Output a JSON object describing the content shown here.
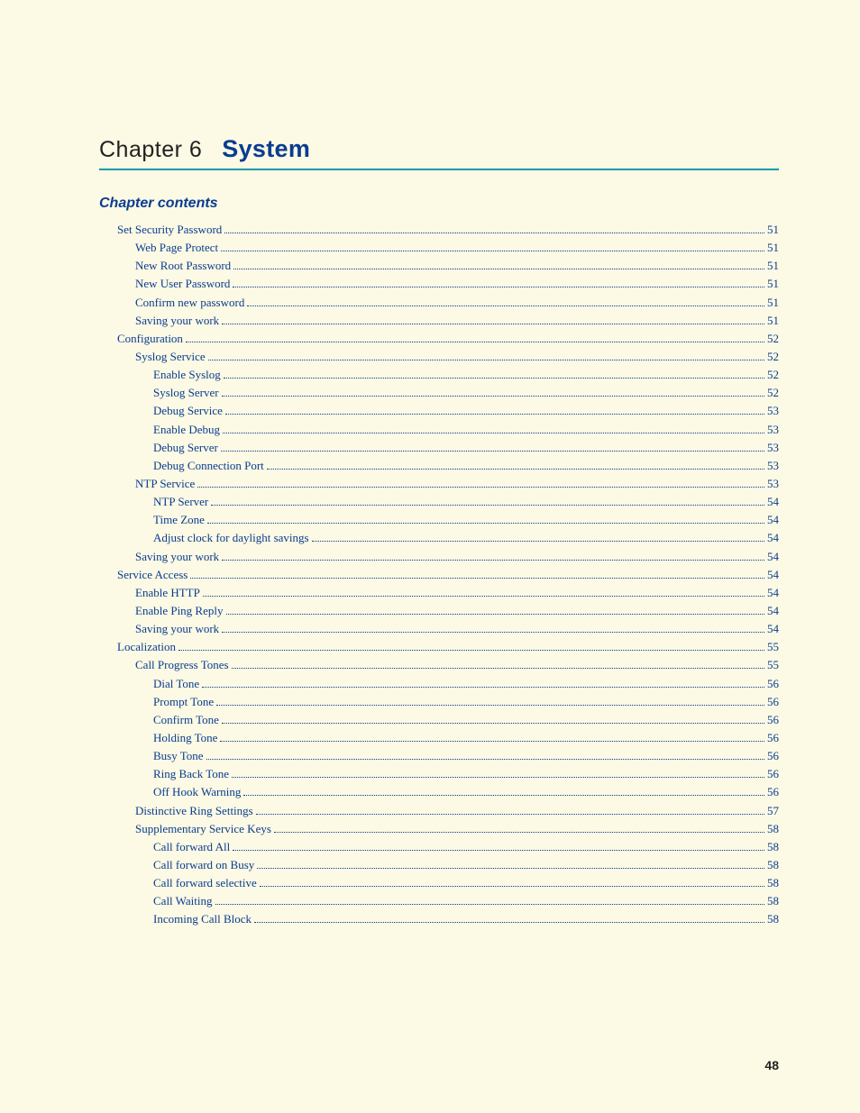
{
  "chapter": {
    "number_label": "Chapter 6",
    "title": "System"
  },
  "contents_heading": "Chapter contents",
  "page_number": "48",
  "toc": [
    {
      "label": "Set Security Password",
      "page": "51",
      "indent": 0
    },
    {
      "label": "Web Page Protect",
      "page": "51",
      "indent": 1
    },
    {
      "label": "New Root Password",
      "page": "51",
      "indent": 1
    },
    {
      "label": "New User Password",
      "page": "51",
      "indent": 1
    },
    {
      "label": "Confirm new password",
      "page": "51",
      "indent": 1
    },
    {
      "label": "Saving your work",
      "page": "51",
      "indent": 1
    },
    {
      "label": "Configuration",
      "page": "52",
      "indent": 0
    },
    {
      "label": "Syslog Service",
      "page": "52",
      "indent": 1
    },
    {
      "label": "Enable Syslog",
      "page": "52",
      "indent": 2
    },
    {
      "label": "Syslog Server",
      "page": "52",
      "indent": 2
    },
    {
      "label": "Debug Service",
      "page": "53",
      "indent": 2
    },
    {
      "label": "Enable Debug",
      "page": "53",
      "indent": 2
    },
    {
      "label": "Debug Server",
      "page": "53",
      "indent": 2
    },
    {
      "label": "Debug Connection Port",
      "page": "53",
      "indent": 2
    },
    {
      "label": "NTP Service",
      "page": "53",
      "indent": 1
    },
    {
      "label": "NTP Server",
      "page": "54",
      "indent": 2
    },
    {
      "label": "Time Zone",
      "page": "54",
      "indent": 2
    },
    {
      "label": "Adjust clock for daylight savings",
      "page": "54",
      "indent": 2
    },
    {
      "label": "Saving your work",
      "page": "54",
      "indent": 1
    },
    {
      "label": "Service Access",
      "page": "54",
      "indent": 0
    },
    {
      "label": "Enable HTTP",
      "page": "54",
      "indent": 1
    },
    {
      "label": "Enable Ping Reply",
      "page": "54",
      "indent": 1
    },
    {
      "label": "Saving your work",
      "page": "54",
      "indent": 1
    },
    {
      "label": "Localization",
      "page": "55",
      "indent": 0
    },
    {
      "label": "Call Progress Tones",
      "page": "55",
      "indent": 1
    },
    {
      "label": "Dial Tone",
      "page": "56",
      "indent": 2
    },
    {
      "label": "Prompt Tone",
      "page": "56",
      "indent": 2
    },
    {
      "label": "Confirm Tone",
      "page": "56",
      "indent": 2
    },
    {
      "label": "Holding Tone",
      "page": "56",
      "indent": 2
    },
    {
      "label": "Busy Tone",
      "page": "56",
      "indent": 2
    },
    {
      "label": "Ring Back Tone",
      "page": "56",
      "indent": 2
    },
    {
      "label": "Off Hook Warning",
      "page": "56",
      "indent": 2
    },
    {
      "label": "Distinctive Ring Settings",
      "page": "57",
      "indent": 1
    },
    {
      "label": "Supplementary Service Keys",
      "page": "58",
      "indent": 1
    },
    {
      "label": "Call forward All",
      "page": "58",
      "indent": 2
    },
    {
      "label": "Call forward on Busy",
      "page": "58",
      "indent": 2
    },
    {
      "label": "Call forward selective",
      "page": "58",
      "indent": 2
    },
    {
      "label": "Call Waiting",
      "page": "58",
      "indent": 2
    },
    {
      "label": "Incoming Call Block",
      "page": "58",
      "indent": 2
    }
  ]
}
